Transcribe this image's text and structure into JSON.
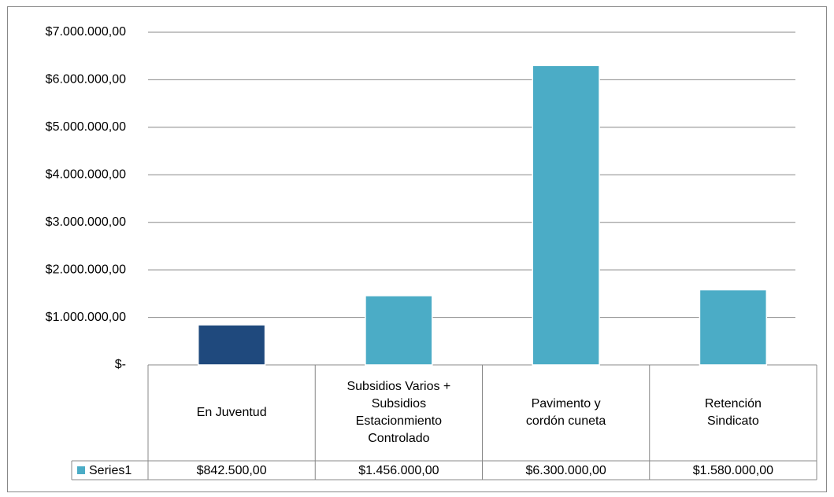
{
  "chart_data": {
    "type": "bar",
    "categories": [
      "En Juventud",
      "Subsidios Varios + Subsidios Estacionmiento Controlado",
      "Pavimento y cordón cuneta",
      "Retención Sindicato"
    ],
    "series": [
      {
        "name": "Series1",
        "color": "#4bacc6",
        "colors": [
          "#1f497d",
          "#4bacc6",
          "#4bacc6",
          "#4bacc6"
        ],
        "values": [
          842500,
          1456000,
          6300000,
          1580000
        ],
        "value_labels": [
          "$842.500,00",
          "$1.456.000,00",
          "$6.300.000,00",
          "$1.580.000,00"
        ]
      }
    ],
    "ylim": [
      0,
      7000000
    ],
    "yticks": [
      {
        "value": 0,
        "label": "$-"
      },
      {
        "value": 1000000,
        "label": "$1.000.000,00"
      },
      {
        "value": 2000000,
        "label": "$2.000.000,00"
      },
      {
        "value": 3000000,
        "label": "$3.000.000,00"
      },
      {
        "value": 4000000,
        "label": "$4.000.000,00"
      },
      {
        "value": 5000000,
        "label": "$5.000.000,00"
      },
      {
        "value": 6000000,
        "label": "$6.000.000,00"
      },
      {
        "value": 7000000,
        "label": "$7.000.000,00"
      }
    ],
    "grid": true
  }
}
